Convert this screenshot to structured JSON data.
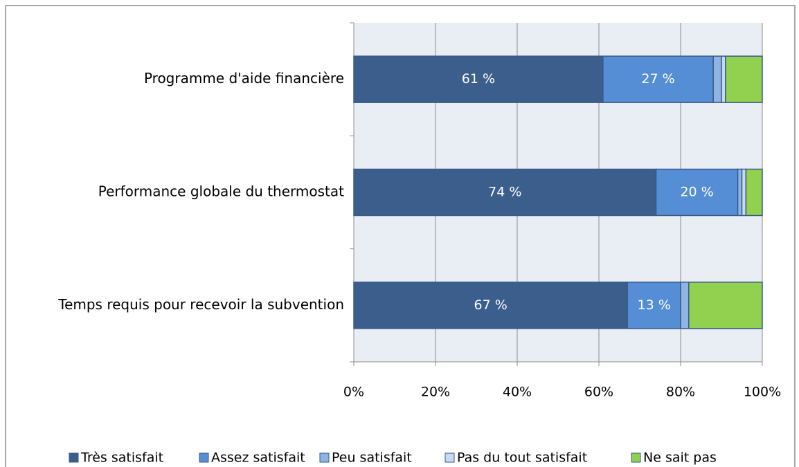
{
  "chart_data": {
    "type": "stacked-barh",
    "categories": [
      "Programme d'aide financière",
      "Performance globale du thermostat",
      "Temps requis pour recevoir la subvention"
    ],
    "series": [
      {
        "name": "Très satisfait",
        "color": "#3b5e8c",
        "values": [
          61,
          74,
          67
        ],
        "value_labels": [
          "61 %",
          "74 %",
          "67 %"
        ]
      },
      {
        "name": "Assez satisfait",
        "color": "#558ed5",
        "values": [
          27,
          20,
          13
        ],
        "value_labels": [
          "27 %",
          "20 %",
          "13 %"
        ]
      },
      {
        "name": "Peu satisfait",
        "color": "#8eb4e3",
        "values": [
          2,
          1,
          2
        ]
      },
      {
        "name": "Pas du tout satisfait",
        "color": "#c6d9f1",
        "values": [
          1,
          1,
          0
        ]
      },
      {
        "name": "Ne sait pas",
        "color": "#92d050",
        "values": [
          9,
          4,
          18
        ]
      }
    ],
    "xlim": [
      0,
      100
    ],
    "xticks": [
      {
        "value": 0,
        "label": "0%"
      },
      {
        "value": 20,
        "label": "20%"
      },
      {
        "value": 40,
        "label": "40%"
      },
      {
        "value": 60,
        "label": "60%"
      },
      {
        "value": 80,
        "label": "80%"
      },
      {
        "value": 100,
        "label": "100%"
      }
    ],
    "grid": true,
    "legend": "bottom"
  }
}
